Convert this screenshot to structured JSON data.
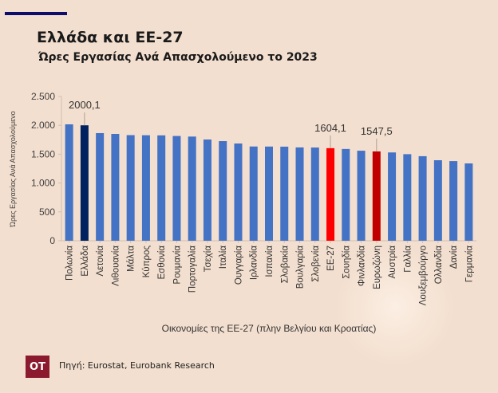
{
  "header": {
    "title": "Ελλάδα και ΕΕ-27",
    "subtitle": "Ώρες Εργασίας Ανά Απασχολούμενο το 2023"
  },
  "footer": {
    "logo": "OT",
    "source": "Πηγή: Eurostat, Eurobank Research"
  },
  "colors": {
    "default": "#4472c4",
    "greece": "#002060",
    "eu27": "#ff0000",
    "eurozone": "#c00000",
    "background": "#f3dfcf"
  },
  "chart_data": {
    "type": "bar",
    "title": "Ώρες Εργασίας Ανά Απασχολούμενο το 2023",
    "xlabel": "Οικονομίες της ΕΕ-27  (πλην Βελγίου και Κροατίας)",
    "ylabel": "Ώρες Εργασίας Ανά Απασχολούμενο",
    "ylim": [
      0,
      2500
    ],
    "yticks": [
      0,
      500,
      1000,
      1500,
      2000,
      2500
    ],
    "ytick_labels": [
      "0",
      "500",
      "1.000",
      "1.500",
      "2.000",
      "2.500"
    ],
    "grid": false,
    "categories": [
      "Πολωνία",
      "Ελλάδα",
      "Λετονία",
      "Λιθουανία",
      "Μάλτα",
      "Κύπρος",
      "Εσθονία",
      "Ρουμανία",
      "Πορτογαλία",
      "Τσεχία",
      "Ιταλία",
      "Ουγγαρία",
      "Ιρλανδία",
      "Ισπανία",
      "Σλοβακία",
      "Βουλγαρία",
      "Σλοβενία",
      "ΕΕ-27",
      "Σουηδία",
      "Φινλανδία",
      "Ευρωζώνη",
      "Αυστρία",
      "Γαλλία",
      "Λουξεμβούργο",
      "Ολλανδία",
      "Δανία",
      "Γερμανία"
    ],
    "values": [
      2017,
      2000.1,
      1865,
      1851,
      1830,
      1828,
      1826,
      1815,
      1805,
      1754,
      1726,
      1685,
      1633,
      1632,
      1630,
      1617,
      1615,
      1604.1,
      1590,
      1560,
      1547.5,
      1530,
      1500,
      1465,
      1395,
      1380,
      1340
    ],
    "highlight": {
      "Ελλάδα": "greece",
      "ΕΕ-27": "eu27",
      "Ευρωζώνη": "eurozone"
    },
    "data_labels": [
      {
        "category": "Ελλάδα",
        "text": "2000,1"
      },
      {
        "category": "ΕΕ-27",
        "text": "1604,1"
      },
      {
        "category": "Ευρωζώνη",
        "text": "1547,5"
      }
    ]
  }
}
